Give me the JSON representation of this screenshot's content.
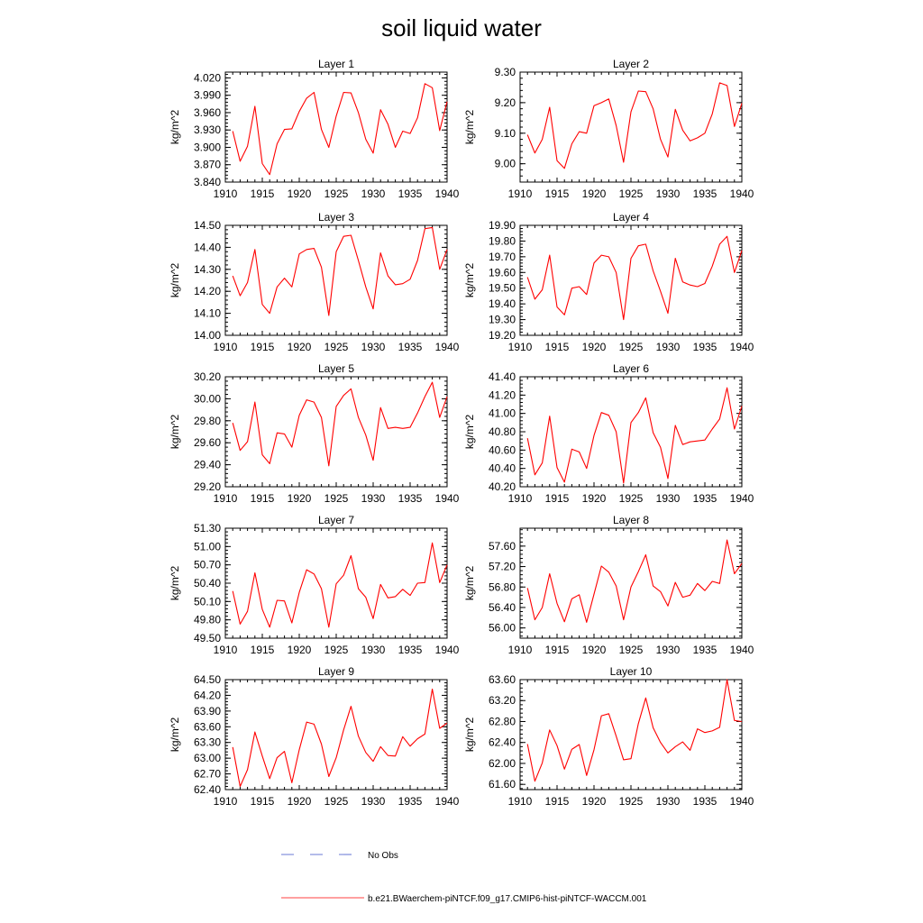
{
  "title": "soil liquid water",
  "colors": {
    "model": "#ff0000",
    "obs": "#3a4fc8",
    "axis": "#000000"
  },
  "legend": {
    "obs_label": "No Obs",
    "model_label": "b.e21.BWaerchem-piNTCF.f09_g17.CMIP6-hist-piNTCF-WACCM.001"
  },
  "chart_data": [
    {
      "type": "line",
      "title": "Layer 1",
      "ylabel": "kg/m^2",
      "xlim": [
        1910,
        1940
      ],
      "ylim": [
        3.84,
        4.03
      ],
      "xticks": [
        "1910",
        "1915",
        "1920",
        "1925",
        "1930",
        "1935",
        "1940"
      ],
      "yticks": [
        "3.840",
        "3.870",
        "3.900",
        "3.930",
        "3.960",
        "3.990",
        "4.020"
      ],
      "x": [
        1911,
        1912,
        1913,
        1914,
        1915,
        1916,
        1917,
        1918,
        1919,
        1920,
        1921,
        1922,
        1923,
        1924,
        1925,
        1926,
        1927,
        1928,
        1929,
        1930,
        1931,
        1932,
        1933,
        1934,
        1935,
        1936,
        1937,
        1938,
        1939,
        1940
      ],
      "series": [
        {
          "values": [
            3.928,
            3.876,
            3.902,
            3.971,
            3.872,
            3.853,
            3.906,
            3.931,
            3.932,
            3.962,
            3.985,
            3.995,
            3.931,
            3.9,
            3.954,
            3.995,
            3.994,
            3.96,
            3.914,
            3.89,
            3.965,
            3.94,
            3.9,
            3.928,
            3.924,
            3.951,
            4.01,
            4.003,
            3.929,
            3.979
          ]
        }
      ]
    },
    {
      "type": "line",
      "title": "Layer 2",
      "ylabel": "kg/m^2",
      "xlim": [
        1910,
        1940
      ],
      "ylim": [
        8.94,
        9.3
      ],
      "xticks": [
        "1910",
        "1915",
        "1920",
        "1925",
        "1930",
        "1935",
        "1940"
      ],
      "yticks": [
        "9.00",
        "9.10",
        "9.20",
        "9.30"
      ],
      "x": [
        1911,
        1912,
        1913,
        1914,
        1915,
        1916,
        1917,
        1918,
        1919,
        1920,
        1921,
        1922,
        1923,
        1924,
        1925,
        1926,
        1927,
        1928,
        1929,
        1930,
        1931,
        1932,
        1933,
        1934,
        1935,
        1936,
        1937,
        1938,
        1939,
        1940
      ],
      "series": [
        {
          "values": [
            9.095,
            9.035,
            9.08,
            9.185,
            9.01,
            8.985,
            9.065,
            9.105,
            9.1,
            9.19,
            9.2,
            9.212,
            9.125,
            9.005,
            9.17,
            9.238,
            9.236,
            9.18,
            9.08,
            9.022,
            9.178,
            9.11,
            9.075,
            9.085,
            9.1,
            9.163,
            9.265,
            9.256,
            9.122,
            9.198
          ]
        }
      ]
    },
    {
      "type": "line",
      "title": "Layer 3",
      "ylabel": "kg/m^2",
      "xlim": [
        1910,
        1940
      ],
      "ylim": [
        14.0,
        14.5
      ],
      "xticks": [
        "1910",
        "1915",
        "1920",
        "1925",
        "1930",
        "1935",
        "1940"
      ],
      "yticks": [
        "14.00",
        "14.10",
        "14.20",
        "14.30",
        "14.40",
        "14.50"
      ],
      "x": [
        1911,
        1912,
        1913,
        1914,
        1915,
        1916,
        1917,
        1918,
        1919,
        1920,
        1921,
        1922,
        1923,
        1924,
        1925,
        1926,
        1927,
        1928,
        1929,
        1930,
        1931,
        1932,
        1933,
        1934,
        1935,
        1936,
        1937,
        1938,
        1939,
        1940
      ],
      "series": [
        {
          "values": [
            14.27,
            14.18,
            14.24,
            14.39,
            14.14,
            14.1,
            14.22,
            14.26,
            14.22,
            14.37,
            14.39,
            14.395,
            14.31,
            14.09,
            14.38,
            14.45,
            14.455,
            14.34,
            14.22,
            14.12,
            14.375,
            14.27,
            14.23,
            14.235,
            14.255,
            14.34,
            14.485,
            14.49,
            14.3,
            14.39
          ]
        }
      ]
    },
    {
      "type": "line",
      "title": "Layer 4",
      "ylabel": "kg/m^2",
      "xlim": [
        1910,
        1940
      ],
      "ylim": [
        19.2,
        19.9
      ],
      "xticks": [
        "1910",
        "1915",
        "1920",
        "1925",
        "1930",
        "1935",
        "1940"
      ],
      "yticks": [
        "19.20",
        "19.30",
        "19.40",
        "19.50",
        "19.60",
        "19.70",
        "19.80",
        "19.90"
      ],
      "x": [
        1911,
        1912,
        1913,
        1914,
        1915,
        1916,
        1917,
        1918,
        1919,
        1920,
        1921,
        1922,
        1923,
        1924,
        1925,
        1926,
        1927,
        1928,
        1929,
        1930,
        1931,
        1932,
        1933,
        1934,
        1935,
        1936,
        1937,
        1938,
        1939,
        1940
      ],
      "series": [
        {
          "values": [
            19.57,
            19.43,
            19.49,
            19.71,
            19.38,
            19.33,
            19.5,
            19.51,
            19.46,
            19.66,
            19.71,
            19.7,
            19.6,
            19.3,
            19.69,
            19.77,
            19.78,
            19.61,
            19.48,
            19.34,
            19.69,
            19.54,
            19.52,
            19.51,
            19.53,
            19.64,
            19.78,
            19.83,
            19.6,
            19.74
          ]
        }
      ]
    },
    {
      "type": "line",
      "title": "Layer 5",
      "ylabel": "kg/m^2",
      "xlim": [
        1910,
        1940
      ],
      "ylim": [
        29.2,
        30.2
      ],
      "xticks": [
        "1910",
        "1915",
        "1920",
        "1925",
        "1930",
        "1935",
        "1940"
      ],
      "yticks": [
        "29.20",
        "29.40",
        "29.60",
        "29.80",
        "30.00",
        "30.20"
      ],
      "x": [
        1911,
        1912,
        1913,
        1914,
        1915,
        1916,
        1917,
        1918,
        1919,
        1920,
        1921,
        1922,
        1923,
        1924,
        1925,
        1926,
        1927,
        1928,
        1929,
        1930,
        1931,
        1932,
        1933,
        1934,
        1935,
        1936,
        1937,
        1938,
        1939,
        1940
      ],
      "series": [
        {
          "values": [
            29.78,
            29.53,
            29.61,
            29.97,
            29.49,
            29.41,
            29.69,
            29.68,
            29.56,
            29.85,
            29.99,
            29.97,
            29.83,
            29.39,
            29.93,
            30.03,
            30.09,
            29.83,
            29.67,
            29.44,
            29.92,
            29.73,
            29.74,
            29.73,
            29.74,
            29.87,
            30.02,
            30.15,
            29.83,
            30.02
          ]
        }
      ]
    },
    {
      "type": "line",
      "title": "Layer 6",
      "ylabel": "kg/m^2",
      "xlim": [
        1910,
        1940
      ],
      "ylim": [
        40.2,
        41.4
      ],
      "xticks": [
        "1910",
        "1915",
        "1920",
        "1925",
        "1930",
        "1935",
        "1940"
      ],
      "yticks": [
        "40.20",
        "40.40",
        "40.60",
        "40.80",
        "41.00",
        "41.20",
        "41.40"
      ],
      "x": [
        1911,
        1912,
        1913,
        1914,
        1915,
        1916,
        1917,
        1918,
        1919,
        1920,
        1921,
        1922,
        1923,
        1924,
        1925,
        1926,
        1927,
        1928,
        1929,
        1930,
        1931,
        1932,
        1933,
        1934,
        1935,
        1936,
        1937,
        1938,
        1939,
        1940
      ],
      "series": [
        {
          "values": [
            40.73,
            40.33,
            40.46,
            40.97,
            40.41,
            40.25,
            40.61,
            40.58,
            40.4,
            40.76,
            41.01,
            40.98,
            40.8,
            40.24,
            40.9,
            41.01,
            41.17,
            40.79,
            40.63,
            40.29,
            40.87,
            40.66,
            40.69,
            40.7,
            40.71,
            40.83,
            40.94,
            41.28,
            40.83,
            41.08
          ]
        }
      ]
    },
    {
      "type": "line",
      "title": "Layer 7",
      "ylabel": "kg/m^2",
      "xlim": [
        1910,
        1940
      ],
      "ylim": [
        49.5,
        51.3
      ],
      "xticks": [
        "1910",
        "1915",
        "1920",
        "1925",
        "1930",
        "1935",
        "1940"
      ],
      "yticks": [
        "49.50",
        "49.80",
        "50.10",
        "50.40",
        "50.70",
        "51.00",
        "51.30"
      ],
      "x": [
        1911,
        1912,
        1913,
        1914,
        1915,
        1916,
        1917,
        1918,
        1919,
        1920,
        1921,
        1922,
        1923,
        1924,
        1925,
        1926,
        1927,
        1928,
        1929,
        1930,
        1931,
        1932,
        1933,
        1934,
        1935,
        1936,
        1937,
        1938,
        1939,
        1940
      ],
      "series": [
        {
          "values": [
            50.27,
            49.73,
            49.94,
            50.57,
            49.97,
            49.68,
            50.12,
            50.11,
            49.75,
            50.25,
            50.62,
            50.55,
            50.31,
            49.68,
            50.39,
            50.53,
            50.85,
            50.31,
            50.17,
            49.82,
            50.38,
            50.16,
            50.18,
            50.3,
            50.2,
            50.4,
            50.41,
            51.06,
            50.41,
            50.7
          ]
        }
      ]
    },
    {
      "type": "line",
      "title": "Layer 8",
      "ylabel": "kg/m^2",
      "xlim": [
        1910,
        1940
      ],
      "ylim": [
        55.8,
        57.95
      ],
      "xticks": [
        "1910",
        "1915",
        "1920",
        "1925",
        "1930",
        "1935",
        "1940"
      ],
      "yticks": [
        "56.00",
        "56.40",
        "56.80",
        "57.20",
        "57.60"
      ],
      "x": [
        1911,
        1912,
        1913,
        1914,
        1915,
        1916,
        1917,
        1918,
        1919,
        1920,
        1921,
        1922,
        1923,
        1924,
        1925,
        1926,
        1927,
        1928,
        1929,
        1930,
        1931,
        1932,
        1933,
        1934,
        1935,
        1936,
        1937,
        1938,
        1939,
        1940
      ],
      "series": [
        {
          "values": [
            56.78,
            56.16,
            56.4,
            57.06,
            56.48,
            56.12,
            56.57,
            56.65,
            56.11,
            56.66,
            57.21,
            57.09,
            56.82,
            56.16,
            56.8,
            57.1,
            57.43,
            56.82,
            56.71,
            56.43,
            56.89,
            56.6,
            56.64,
            56.87,
            56.73,
            56.91,
            56.87,
            57.72,
            57.06,
            57.26
          ]
        }
      ]
    },
    {
      "type": "line",
      "title": "Layer 9",
      "ylabel": "kg/m^2",
      "xlim": [
        1910,
        1940
      ],
      "ylim": [
        62.4,
        64.5
      ],
      "xticks": [
        "1910",
        "1915",
        "1920",
        "1925",
        "1930",
        "1935",
        "1940"
      ],
      "yticks": [
        "62.40",
        "62.70",
        "63.00",
        "63.30",
        "63.60",
        "63.90",
        "64.20",
        "64.50"
      ],
      "x": [
        1911,
        1912,
        1913,
        1914,
        1915,
        1916,
        1917,
        1918,
        1919,
        1920,
        1921,
        1922,
        1923,
        1924,
        1925,
        1926,
        1927,
        1928,
        1929,
        1930,
        1931,
        1932,
        1933,
        1934,
        1935,
        1936,
        1937,
        1938,
        1939,
        1940
      ],
      "series": [
        {
          "values": [
            63.21,
            62.46,
            62.78,
            63.5,
            63.04,
            62.61,
            63.01,
            63.13,
            62.53,
            63.16,
            63.69,
            63.65,
            63.27,
            62.65,
            63.01,
            63.54,
            63.99,
            63.42,
            63.11,
            62.94,
            63.22,
            63.05,
            63.04,
            63.41,
            63.23,
            63.37,
            63.46,
            64.32,
            63.57,
            63.67
          ]
        }
      ]
    },
    {
      "type": "line",
      "title": "Layer 10",
      "ylabel": "kg/m^2",
      "xlim": [
        1910,
        1940
      ],
      "ylim": [
        61.5,
        63.6
      ],
      "xticks": [
        "1910",
        "1915",
        "1920",
        "1925",
        "1930",
        "1935",
        "1940"
      ],
      "yticks": [
        "61.60",
        "62.00",
        "62.40",
        "62.80",
        "63.20",
        "63.60"
      ],
      "x": [
        1911,
        1912,
        1913,
        1914,
        1915,
        1916,
        1917,
        1918,
        1919,
        1920,
        1921,
        1922,
        1923,
        1924,
        1925,
        1926,
        1927,
        1928,
        1929,
        1930,
        1931,
        1932,
        1933,
        1934,
        1935,
        1936,
        1937,
        1938,
        1939,
        1940
      ],
      "series": [
        {
          "values": [
            62.37,
            61.66,
            62.01,
            62.64,
            62.34,
            61.89,
            62.27,
            62.36,
            61.77,
            62.26,
            62.91,
            62.95,
            62.52,
            62.07,
            62.09,
            62.76,
            63.25,
            62.68,
            62.4,
            62.2,
            62.32,
            62.41,
            62.25,
            62.66,
            62.59,
            62.62,
            62.69,
            63.6,
            62.82,
            62.8
          ]
        }
      ]
    }
  ]
}
